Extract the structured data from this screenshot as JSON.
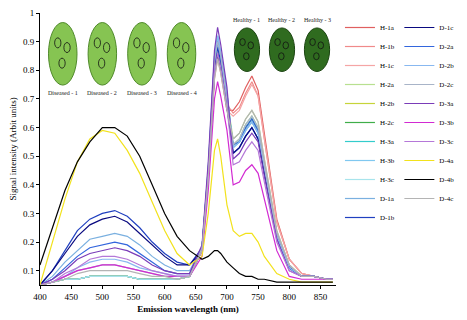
{
  "chart_data": {
    "type": "line",
    "x_label": "Emission wavelength (nm)",
    "y_label": "Signal intensity (Arbit units)",
    "xlim": [
      400,
      875
    ],
    "ylim": [
      0.05,
      1
    ],
    "xticks": [
      400,
      450,
      500,
      550,
      600,
      650,
      700,
      750,
      800,
      850
    ],
    "yticks": [
      0.1,
      0.2,
      0.3,
      0.4,
      0.5,
      0.6,
      0.7,
      0.8,
      0.9,
      1
    ],
    "grid": false,
    "legend": "right",
    "annotations": [
      "Diseased - 1",
      "Diseased - 2",
      "Diseased - 3",
      "Diseased - 4",
      "Healthy - 1",
      "Healthy - 2",
      "Healthy - 3"
    ],
    "x": [
      400,
      420,
      440,
      460,
      480,
      500,
      520,
      540,
      560,
      580,
      600,
      620,
      640,
      660,
      670,
      680,
      685,
      690,
      700,
      710,
      720,
      730,
      740,
      750,
      760,
      780,
      800,
      820,
      840,
      860,
      870
    ],
    "series": [
      {
        "name": "H-1a",
        "color": "#e06060",
        "values": [
          0.05,
          0.06,
          0.07,
          0.07,
          0.08,
          0.08,
          0.08,
          0.08,
          0.07,
          0.07,
          0.07,
          0.07,
          0.08,
          0.17,
          0.43,
          0.78,
          0.85,
          0.8,
          0.66,
          0.66,
          0.69,
          0.74,
          0.78,
          0.73,
          0.58,
          0.28,
          0.14,
          0.09,
          0.08,
          0.07,
          0.07
        ]
      },
      {
        "name": "H-1b",
        "color": "#f08a8a",
        "values": [
          0.05,
          0.06,
          0.07,
          0.07,
          0.08,
          0.08,
          0.08,
          0.08,
          0.07,
          0.07,
          0.07,
          0.07,
          0.08,
          0.17,
          0.44,
          0.8,
          0.87,
          0.82,
          0.68,
          0.65,
          0.67,
          0.72,
          0.76,
          0.71,
          0.56,
          0.27,
          0.14,
          0.09,
          0.08,
          0.07,
          0.07
        ]
      },
      {
        "name": "H-1c",
        "color": "#f5a5a5",
        "values": [
          0.05,
          0.06,
          0.07,
          0.07,
          0.08,
          0.08,
          0.08,
          0.08,
          0.07,
          0.07,
          0.07,
          0.07,
          0.08,
          0.17,
          0.42,
          0.77,
          0.84,
          0.79,
          0.66,
          0.64,
          0.66,
          0.71,
          0.75,
          0.71,
          0.56,
          0.27,
          0.14,
          0.09,
          0.08,
          0.07,
          0.07
        ]
      },
      {
        "name": "H-2a",
        "color": "#b8e090",
        "values": [
          0.05,
          0.06,
          0.07,
          0.07,
          0.08,
          0.08,
          0.08,
          0.08,
          0.07,
          0.07,
          0.07,
          0.07,
          0.08,
          0.18,
          0.45,
          0.83,
          0.9,
          0.85,
          0.7,
          0.56,
          0.58,
          0.63,
          0.66,
          0.62,
          0.49,
          0.24,
          0.12,
          0.08,
          0.08,
          0.07,
          0.07
        ]
      },
      {
        "name": "H-2b",
        "color": "#c6d43a",
        "values": [
          0.05,
          0.06,
          0.07,
          0.07,
          0.08,
          0.08,
          0.08,
          0.08,
          0.07,
          0.07,
          0.07,
          0.07,
          0.08,
          0.18,
          0.44,
          0.81,
          0.88,
          0.83,
          0.69,
          0.54,
          0.56,
          0.61,
          0.64,
          0.6,
          0.47,
          0.23,
          0.12,
          0.08,
          0.08,
          0.07,
          0.07
        ]
      },
      {
        "name": "H-2c",
        "color": "#3fae49",
        "values": [
          0.05,
          0.06,
          0.07,
          0.07,
          0.08,
          0.08,
          0.08,
          0.08,
          0.07,
          0.07,
          0.07,
          0.07,
          0.08,
          0.17,
          0.43,
          0.79,
          0.86,
          0.81,
          0.67,
          0.54,
          0.55,
          0.6,
          0.63,
          0.59,
          0.47,
          0.23,
          0.11,
          0.08,
          0.08,
          0.07,
          0.07
        ]
      },
      {
        "name": "H-3a",
        "color": "#33cccc",
        "values": [
          0.05,
          0.06,
          0.07,
          0.07,
          0.08,
          0.08,
          0.08,
          0.08,
          0.07,
          0.07,
          0.07,
          0.07,
          0.08,
          0.18,
          0.46,
          0.85,
          0.92,
          0.86,
          0.72,
          0.53,
          0.55,
          0.59,
          0.62,
          0.58,
          0.46,
          0.22,
          0.11,
          0.08,
          0.08,
          0.07,
          0.07
        ]
      },
      {
        "name": "H-3b",
        "color": "#80c8f0",
        "values": [
          0.05,
          0.06,
          0.07,
          0.07,
          0.08,
          0.08,
          0.08,
          0.08,
          0.07,
          0.07,
          0.07,
          0.07,
          0.08,
          0.18,
          0.45,
          0.83,
          0.9,
          0.85,
          0.7,
          0.51,
          0.53,
          0.57,
          0.6,
          0.56,
          0.44,
          0.22,
          0.11,
          0.08,
          0.08,
          0.07,
          0.07
        ]
      },
      {
        "name": "H-3c",
        "color": "#a8e4ec",
        "values": [
          0.05,
          0.06,
          0.07,
          0.07,
          0.08,
          0.08,
          0.08,
          0.08,
          0.07,
          0.07,
          0.07,
          0.07,
          0.08,
          0.18,
          0.44,
          0.81,
          0.88,
          0.83,
          0.69,
          0.54,
          0.56,
          0.61,
          0.64,
          0.6,
          0.47,
          0.23,
          0.12,
          0.08,
          0.08,
          0.07,
          0.07
        ]
      },
      {
        "name": "D-1a",
        "color": "#7ab0e0",
        "values": [
          0.05,
          0.08,
          0.13,
          0.17,
          0.21,
          0.22,
          0.23,
          0.22,
          0.19,
          0.15,
          0.12,
          0.1,
          0.1,
          0.18,
          0.45,
          0.83,
          0.9,
          0.85,
          0.7,
          0.53,
          0.55,
          0.59,
          0.62,
          0.58,
          0.46,
          0.22,
          0.11,
          0.08,
          0.08,
          0.07,
          0.07
        ]
      },
      {
        "name": "D-1b",
        "color": "#2040c0",
        "values": [
          0.05,
          0.1,
          0.17,
          0.24,
          0.28,
          0.3,
          0.31,
          0.29,
          0.25,
          0.2,
          0.16,
          0.13,
          0.12,
          0.18,
          0.44,
          0.81,
          0.88,
          0.83,
          0.69,
          0.51,
          0.53,
          0.57,
          0.6,
          0.56,
          0.44,
          0.22,
          0.11,
          0.08,
          0.08,
          0.07,
          0.07
        ]
      },
      {
        "name": "D-1c",
        "color": "#0a0a80",
        "values": [
          0.05,
          0.1,
          0.16,
          0.22,
          0.26,
          0.28,
          0.29,
          0.27,
          0.23,
          0.19,
          0.15,
          0.12,
          0.12,
          0.17,
          0.43,
          0.79,
          0.86,
          0.81,
          0.67,
          0.51,
          0.53,
          0.57,
          0.6,
          0.56,
          0.44,
          0.22,
          0.11,
          0.08,
          0.08,
          0.07,
          0.07
        ]
      },
      {
        "name": "D-2a",
        "color": "#3366dd",
        "values": [
          0.05,
          0.07,
          0.11,
          0.15,
          0.18,
          0.19,
          0.2,
          0.19,
          0.16,
          0.13,
          0.1,
          0.09,
          0.09,
          0.18,
          0.45,
          0.83,
          0.9,
          0.85,
          0.7,
          0.54,
          0.55,
          0.6,
          0.63,
          0.59,
          0.47,
          0.23,
          0.11,
          0.08,
          0.08,
          0.07,
          0.07
        ]
      },
      {
        "name": "D-2b",
        "color": "#88b8f0",
        "values": [
          0.05,
          0.06,
          0.08,
          0.11,
          0.13,
          0.14,
          0.14,
          0.13,
          0.11,
          0.1,
          0.09,
          0.08,
          0.08,
          0.18,
          0.46,
          0.85,
          0.92,
          0.86,
          0.72,
          0.53,
          0.55,
          0.59,
          0.62,
          0.58,
          0.46,
          0.22,
          0.11,
          0.08,
          0.08,
          0.07,
          0.07
        ]
      },
      {
        "name": "D-2c",
        "color": "#a8b4c8",
        "values": [
          0.05,
          0.06,
          0.08,
          0.1,
          0.11,
          0.12,
          0.12,
          0.11,
          0.1,
          0.09,
          0.08,
          0.08,
          0.08,
          0.18,
          0.45,
          0.83,
          0.9,
          0.85,
          0.7,
          0.54,
          0.56,
          0.61,
          0.64,
          0.6,
          0.47,
          0.23,
          0.12,
          0.08,
          0.08,
          0.07,
          0.07
        ]
      },
      {
        "name": "D-3a",
        "color": "#7a3cb8",
        "values": [
          0.05,
          0.07,
          0.1,
          0.14,
          0.16,
          0.17,
          0.18,
          0.17,
          0.15,
          0.12,
          0.1,
          0.09,
          0.09,
          0.19,
          0.48,
          0.87,
          0.95,
          0.89,
          0.74,
          0.49,
          0.51,
          0.55,
          0.58,
          0.55,
          0.43,
          0.21,
          0.1,
          0.08,
          0.08,
          0.07,
          0.07
        ]
      },
      {
        "name": "D-3b",
        "color": "#d22ad2",
        "values": [
          0.05,
          0.06,
          0.08,
          0.1,
          0.11,
          0.12,
          0.12,
          0.11,
          0.1,
          0.09,
          0.08,
          0.08,
          0.08,
          0.15,
          0.38,
          0.7,
          0.76,
          0.71,
          0.59,
          0.4,
          0.41,
          0.45,
          0.47,
          0.44,
          0.35,
          0.17,
          0.08,
          0.07,
          0.07,
          0.07,
          0.07
        ]
      },
      {
        "name": "D-3c",
        "color": "#b578d8",
        "values": [
          0.05,
          0.06,
          0.09,
          0.11,
          0.14,
          0.15,
          0.15,
          0.14,
          0.12,
          0.1,
          0.09,
          0.08,
          0.08,
          0.17,
          0.43,
          0.79,
          0.86,
          0.81,
          0.67,
          0.47,
          0.48,
          0.52,
          0.55,
          0.52,
          0.41,
          0.2,
          0.1,
          0.08,
          0.08,
          0.07,
          0.07
        ]
      },
      {
        "name": "D-4a",
        "color": "#f2e21c",
        "values": [
          0.05,
          0.2,
          0.35,
          0.48,
          0.56,
          0.59,
          0.58,
          0.52,
          0.44,
          0.34,
          0.24,
          0.16,
          0.12,
          0.15,
          0.3,
          0.52,
          0.56,
          0.5,
          0.33,
          0.24,
          0.22,
          0.23,
          0.23,
          0.2,
          0.15,
          0.09,
          0.07,
          0.06,
          0.06,
          0.06,
          0.06
        ]
      },
      {
        "name": "D-4b",
        "color": "#000000",
        "values": [
          0.12,
          0.25,
          0.38,
          0.48,
          0.55,
          0.6,
          0.6,
          0.57,
          0.5,
          0.4,
          0.3,
          0.22,
          0.17,
          0.14,
          0.15,
          0.17,
          0.17,
          0.16,
          0.13,
          0.11,
          0.09,
          0.08,
          0.08,
          0.07,
          0.07,
          0.06,
          0.06,
          0.06,
          0.06,
          0.06,
          0.06
        ]
      },
      {
        "name": "D-4c",
        "color": "#b4b4b4",
        "values": [
          0.05,
          0.06,
          0.07,
          0.09,
          0.1,
          0.1,
          0.1,
          0.1,
          0.09,
          0.08,
          0.08,
          0.07,
          0.08,
          0.17,
          0.42,
          0.77,
          0.84,
          0.79,
          0.66,
          0.56,
          0.58,
          0.63,
          0.66,
          0.62,
          0.49,
          0.24,
          0.12,
          0.08,
          0.08,
          0.07,
          0.07
        ]
      }
    ]
  }
}
